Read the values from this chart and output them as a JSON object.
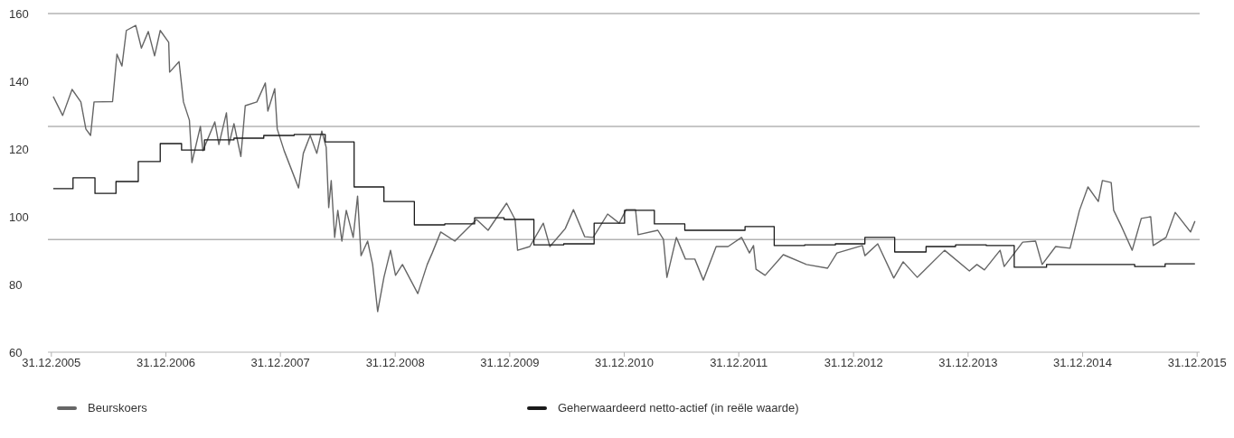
{
  "chart_data": {
    "type": "line",
    "xlim": [
      "2005-12-20",
      "2016-01-08"
    ],
    "xticks": [
      {
        "value": "2005-12-31",
        "label": "31.12.2005"
      },
      {
        "value": "2006-12-31",
        "label": "31.12.2006"
      },
      {
        "value": "2007-12-31",
        "label": "31.12.2007"
      },
      {
        "value": "2008-12-31",
        "label": "31.12.2008"
      },
      {
        "value": "2009-12-31",
        "label": "31.12.2009"
      },
      {
        "value": "2010-12-31",
        "label": "31.12.2010"
      },
      {
        "value": "2011-12-31",
        "label": "31.12.2011"
      },
      {
        "value": "2012-12-31",
        "label": "31.12.2012"
      },
      {
        "value": "2013-12-31",
        "label": "31.12.2013"
      },
      {
        "value": "2014-12-31",
        "label": "31.12.2014"
      },
      {
        "value": "2015-12-31",
        "label": "31.12.2015"
      }
    ],
    "ylim": [
      60,
      160
    ],
    "yticks": [
      60,
      80,
      100,
      120,
      140,
      160
    ],
    "grid": false,
    "legend": "bottom",
    "marker": "none",
    "ref_lines": [
      {
        "axis": "y",
        "value": 160,
        "color": "#b3b3b3"
      },
      {
        "axis": "y",
        "value": 126.7,
        "color": "#b3b3b3"
      },
      {
        "axis": "y",
        "value": 93.3,
        "color": "#b3b3b3"
      }
    ],
    "series": [
      {
        "name": "Beurskoers",
        "color": "#666666",
        "x": [
          "2006-01-06",
          "2006-02-05",
          "2006-03-07",
          "2006-04-04",
          "2006-04-20",
          "2006-05-05",
          "2006-05-16",
          "2006-07-14",
          "2006-07-28",
          "2006-08-13",
          "2006-08-27",
          "2006-09-26",
          "2006-10-14",
          "2006-11-05",
          "2006-11-25",
          "2006-12-13",
          "2007-01-09",
          "2007-01-12",
          "2007-02-11",
          "2007-02-25",
          "2007-03-16",
          "2007-03-24",
          "2007-04-20",
          "2007-04-28",
          "2007-06-05",
          "2007-06-18",
          "2007-07-12",
          "2007-07-20",
          "2007-08-05",
          "2007-08-27",
          "2007-09-10",
          "2007-10-17",
          "2007-11-13",
          "2007-11-21",
          "2007-12-13",
          "2007-12-21",
          "2008-01-12",
          "2008-02-27",
          "2008-03-13",
          "2008-04-04",
          "2008-04-25",
          "2008-05-11",
          "2008-05-25",
          "2008-06-02",
          "2008-06-10",
          "2008-06-21",
          "2008-07-01",
          "2008-07-14",
          "2008-07-28",
          "2008-08-19",
          "2008-09-02",
          "2008-09-13",
          "2008-10-04",
          "2008-10-20",
          "2008-11-05",
          "2008-11-25",
          "2008-12-16",
          "2009-01-01",
          "2009-01-23",
          "2009-03-13",
          "2009-04-12",
          "2009-04-28",
          "2009-05-25",
          "2009-07-09",
          "2009-09-16",
          "2009-10-23",
          "2009-12-21",
          "2010-01-17",
          "2010-01-25",
          "2010-03-05",
          "2010-04-17",
          "2010-05-08",
          "2010-06-26",
          "2010-07-22",
          "2010-08-27",
          "2010-09-23",
          "2010-11-08",
          "2010-12-15",
          "2011-01-06",
          "2011-02-05",
          "2011-02-13",
          "2011-04-17",
          "2011-05-05",
          "2011-05-16",
          "2011-06-15",
          "2011-07-14",
          "2011-08-13",
          "2011-09-09",
          "2011-10-20",
          "2011-11-27",
          "2012-01-09",
          "2012-02-03",
          "2012-02-16",
          "2012-02-24",
          "2012-03-24",
          "2012-05-21",
          "2012-08-03",
          "2012-10-09",
          "2012-11-08",
          "2013-01-28",
          "2013-02-05",
          "2013-03-18",
          "2013-05-08",
          "2013-06-07",
          "2013-07-22",
          "2013-10-17",
          "2014-01-04",
          "2014-01-28",
          "2014-02-21",
          "2014-04-12",
          "2014-04-25",
          "2014-06-23",
          "2014-08-03",
          "2014-08-24",
          "2014-10-06",
          "2014-11-21",
          "2014-12-21",
          "2015-01-17",
          "2015-02-19",
          "2015-03-04",
          "2015-04-01",
          "2015-04-09",
          "2015-05-03",
          "2015-06-07",
          "2015-07-06",
          "2015-08-05",
          "2015-08-13",
          "2015-09-23",
          "2015-10-22",
          "2015-12-10",
          "2015-12-24"
        ],
        "values": [
          135.5,
          129.9,
          137.6,
          133.9,
          125.9,
          124,
          133.9,
          134,
          148,
          144.5,
          155,
          156.5,
          149.8,
          154.7,
          147.5,
          155,
          151.5,
          142.7,
          145.8,
          133.9,
          128.5,
          116,
          126.7,
          119.5,
          128,
          121.3,
          130.7,
          121.3,
          127.5,
          117.8,
          132.8,
          133.9,
          139.5,
          131.2,
          137.8,
          125.9,
          119.5,
          108.5,
          118.7,
          124,
          118.7,
          125.3,
          120.5,
          102.7,
          110.7,
          93.9,
          101.9,
          92.8,
          101.9,
          93.9,
          106.1,
          88.5,
          92.8,
          85.9,
          72,
          82.1,
          90.1,
          82.7,
          85.9,
          77.3,
          85.9,
          89.3,
          95.5,
          92.8,
          99.2,
          96,
          104,
          99.2,
          90.1,
          91.2,
          98.1,
          91.2,
          96.5,
          102.1,
          94.1,
          93.9,
          100.8,
          98.1,
          102.1,
          102.1,
          94.7,
          96,
          93.3,
          82.1,
          93.9,
          87.5,
          87.5,
          81.3,
          91.2,
          91.2,
          93.9,
          89.3,
          91.5,
          84.5,
          82.7,
          88.8,
          85.9,
          84.8,
          89.3,
          91.5,
          88.5,
          92,
          81.9,
          86.7,
          82.1,
          90.1,
          84,
          85.9,
          84.3,
          90.1,
          85.3,
          92.5,
          92.8,
          85.9,
          91.2,
          90.7,
          101.9,
          108.8,
          104.5,
          110.7,
          110.1,
          101.9,
          97.3,
          90.1,
          99.5,
          100,
          91.5,
          93.9,
          101.3,
          95.5,
          98.7
        ]
      },
      {
        "name": "Geherwaardeerd netto-actief (in reële waarde)",
        "type": "step",
        "color": "#1a1a1a",
        "x": [
          "2006-01-06",
          "2006-03-10",
          "2006-05-19",
          "2006-07-25",
          "2006-10-04",
          "2006-12-13",
          "2007-02-19",
          "2007-05-03",
          "2007-08-05",
          "2007-11-08",
          "2008-02-13",
          "2008-05-22",
          "2008-08-22",
          "2008-11-25",
          "2009-03-02",
          "2009-06-07",
          "2009-09-10",
          "2009-12-13",
          "2010-03-18",
          "2010-06-21",
          "2010-09-26",
          "2011-01-01",
          "2011-04-06",
          "2011-07-12",
          "2011-10-14",
          "2012-01-20",
          "2012-04-22",
          "2012-07-28",
          "2012-11-03",
          "2013-02-05",
          "2013-05-11",
          "2013-08-19",
          "2013-11-21",
          "2014-02-27",
          "2014-05-27",
          "2014-09-07",
          "2015-06-15",
          "2015-09-20",
          "2015-12-24"
        ],
        "values": [
          108.3,
          111.5,
          106.9,
          110.4,
          116.3,
          121.6,
          119.7,
          122.7,
          123.2,
          124,
          124.3,
          122.1,
          108.8,
          104.5,
          97.6,
          97.9,
          99.7,
          99.2,
          91.7,
          92,
          98.1,
          101.9,
          97.9,
          96,
          96,
          97.1,
          91.5,
          91.7,
          92,
          93.9,
          89.6,
          91.2,
          91.7,
          91.5,
          85.1,
          85.9,
          85.3,
          86.1,
          86.1
        ]
      }
    ]
  }
}
